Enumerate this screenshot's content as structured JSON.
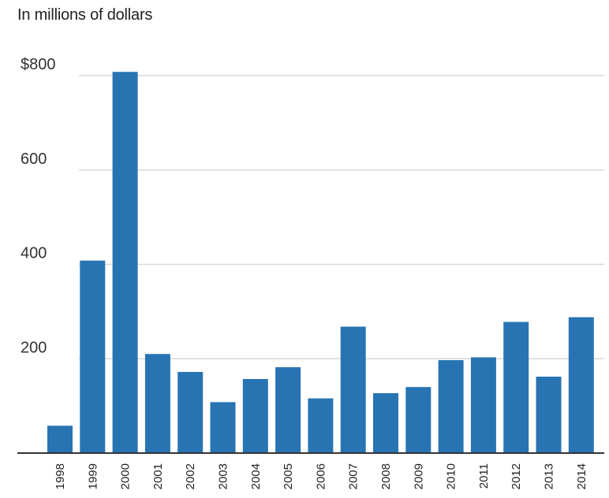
{
  "chart_data": {
    "type": "bar",
    "title": "",
    "subtitle": "In millions of dollars",
    "xlabel": "",
    "ylabel": "",
    "categories": [
      "1998",
      "1999",
      "2000",
      "2001",
      "2002",
      "2003",
      "2004",
      "2005",
      "2006",
      "2007",
      "2008",
      "2009",
      "2010",
      "2011",
      "2012",
      "2013",
      "2014"
    ],
    "values": [
      58,
      408,
      808,
      210,
      172,
      108,
      157,
      182,
      116,
      268,
      127,
      140,
      197,
      203,
      278,
      162,
      288
    ],
    "ylim": [
      0,
      800
    ],
    "yticks": [
      {
        "value": 200,
        "label": "200"
      },
      {
        "value": 400,
        "label": "400"
      },
      {
        "value": 600,
        "label": "600"
      },
      {
        "value": 800,
        "label": "$800"
      }
    ],
    "grid": true,
    "colors": {
      "bar": "#2874b2",
      "grid": "#d9d9d9",
      "axis": "#333333"
    }
  }
}
